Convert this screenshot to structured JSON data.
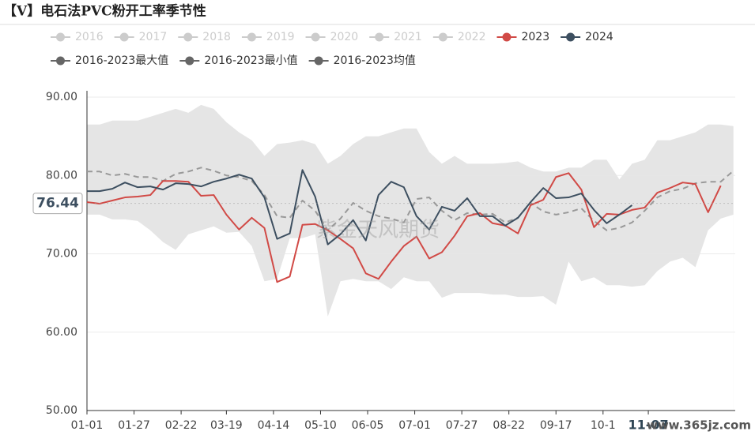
{
  "chart_data": {
    "type": "line",
    "title": "【V】电石法PVC粉开工率季节性",
    "x": [
      0,
      7,
      14,
      21,
      28,
      35,
      42,
      49,
      56,
      63,
      70,
      77,
      84,
      91,
      98,
      105,
      112,
      119,
      126,
      133,
      140,
      147,
      154,
      161,
      168,
      175,
      182,
      189,
      196,
      203,
      210,
      217,
      224,
      231,
      238,
      245,
      252,
      259,
      266,
      273,
      280,
      287,
      294,
      301,
      308,
      315,
      322,
      329,
      336,
      343,
      350,
      357
    ],
    "xlim": [
      0,
      358
    ],
    "xticks": [
      {
        "value": 0,
        "label": "01-01"
      },
      {
        "value": 26,
        "label": "01-27"
      },
      {
        "value": 52,
        "label": "02-22"
      },
      {
        "value": 77,
        "label": "03-19"
      },
      {
        "value": 103,
        "label": "04-14"
      },
      {
        "value": 129,
        "label": "05-10"
      },
      {
        "value": 155,
        "label": "06-05"
      },
      {
        "value": 181,
        "label": "07-01"
      },
      {
        "value": 207,
        "label": "07-27"
      },
      {
        "value": 233,
        "label": "08-22"
      },
      {
        "value": 259,
        "label": "09-17"
      },
      {
        "value": 285,
        "label": "10-1"
      },
      {
        "value": 310,
        "label": "11-07"
      }
    ],
    "x_pointer_tick": 12,
    "ylim": [
      50,
      90
    ],
    "yticks": [
      {
        "value": 50,
        "label": "50.00"
      },
      {
        "value": 60,
        "label": "60.00"
      },
      {
        "value": 70,
        "label": "70.00"
      },
      {
        "value": 80,
        "label": "80.00"
      },
      {
        "value": 90,
        "label": "90.00"
      }
    ],
    "y_pointer": 76.44,
    "grid": true,
    "inactive_legend": [
      "2016",
      "2017",
      "2018",
      "2019",
      "2020",
      "2021",
      "2022"
    ],
    "inactive_color": "#cccccc",
    "series": [
      {
        "name": "2023",
        "color": "#d14a46",
        "style": "line",
        "values": [
          76.6,
          76.4,
          76.8,
          77.2,
          77.3,
          77.5,
          79.3,
          79.3,
          79.2,
          77.4,
          77.5,
          75,
          73.1,
          74.6,
          73.3,
          66.4,
          67.1,
          73.7,
          73.8,
          73,
          71.9,
          70.7,
          67.5,
          66.8,
          69,
          71,
          72.2,
          69.4,
          70.2,
          72.3,
          74.8,
          75.2,
          73.9,
          73.6,
          72.6,
          76.2,
          76.9,
          79.8,
          80.3,
          78.2,
          73.4,
          75.1,
          75,
          75.6,
          75.9,
          77.8,
          78.4,
          79.1,
          78.9,
          75.3,
          78.7,
          null
        ]
      },
      {
        "name": "2024",
        "color": "#3d4f60",
        "style": "line",
        "values": [
          78,
          78,
          78.3,
          79.1,
          78.5,
          78.6,
          78.2,
          79,
          78.9,
          78.6,
          79.2,
          79.6,
          80.1,
          79.6,
          77.2,
          71.9,
          72.6,
          80.7,
          77.3,
          71.2,
          72.5,
          74.3,
          71.7,
          77.5,
          79.2,
          78.5,
          74.8,
          73.1,
          76,
          75.5,
          77.1,
          74.8,
          74.8,
          73.6,
          74.6,
          76.6,
          78.4,
          77.1,
          77.2,
          77.7,
          75.6,
          73.9,
          75,
          76.2,
          null,
          null,
          null,
          null,
          null,
          null,
          null,
          null
        ]
      },
      {
        "name": "2016-2023最大值",
        "color": "#666666",
        "style": "band-top",
        "fill": "#e5e5e5",
        "values": [
          86.5,
          86.5,
          87,
          87,
          87,
          87.5,
          88,
          88.5,
          88,
          89,
          88.5,
          86.8,
          85.5,
          84.5,
          82.5,
          84,
          84.2,
          84.5,
          84,
          81.5,
          82.5,
          84,
          85,
          85,
          85.5,
          86,
          86,
          83,
          81.5,
          82.5,
          81.5,
          81.5,
          81.5,
          81.6,
          81.8,
          81,
          80.5,
          80.5,
          81,
          81,
          82,
          82,
          79.5,
          81.5,
          82,
          84.5,
          84.5,
          85,
          85.5,
          86.5,
          86.5,
          86.3
        ]
      },
      {
        "name": "2016-2023最小值",
        "color": "#666666",
        "style": "band-bottom",
        "fill": "#ffffff",
        "values": [
          75,
          75,
          74.4,
          74.4,
          74.2,
          73,
          71.5,
          70.5,
          72.5,
          73,
          73.5,
          72.7,
          72.8,
          71,
          66.5,
          66.8,
          72,
          72,
          72.5,
          62,
          66.5,
          66.8,
          66.5,
          66.5,
          65.5,
          67,
          66.5,
          66.5,
          64.4,
          65,
          65,
          65,
          64.8,
          64.8,
          64.5,
          64.5,
          64.6,
          63.5,
          69,
          66.5,
          67,
          66,
          66,
          65.8,
          66,
          67.8,
          69,
          69.5,
          68.3,
          73,
          74.5,
          75
        ]
      },
      {
        "name": "2016-2023均值",
        "color": "#666666",
        "style": "dashed",
        "line_color": "#999999",
        "values": [
          80.5,
          80.5,
          80,
          80.2,
          79.8,
          79.8,
          79.3,
          80.2,
          80.5,
          81,
          80.6,
          80,
          79.8,
          79.3,
          77.5,
          74.8,
          74.6,
          76.8,
          75.5,
          73,
          74.5,
          76.5,
          75.5,
          74.8,
          74.5,
          74,
          77,
          77.2,
          75.5,
          74.3,
          75.2,
          75,
          75.1,
          74,
          74.6,
          76.5,
          75.4,
          75,
          75.3,
          75.8,
          74.2,
          73,
          73.3,
          74,
          75.5,
          77.2,
          78,
          78.3,
          79,
          79.2,
          79.2,
          80.6
        ]
      }
    ],
    "watermarks": [
      "紫金天风期货",
      "www.365jz.com"
    ]
  }
}
